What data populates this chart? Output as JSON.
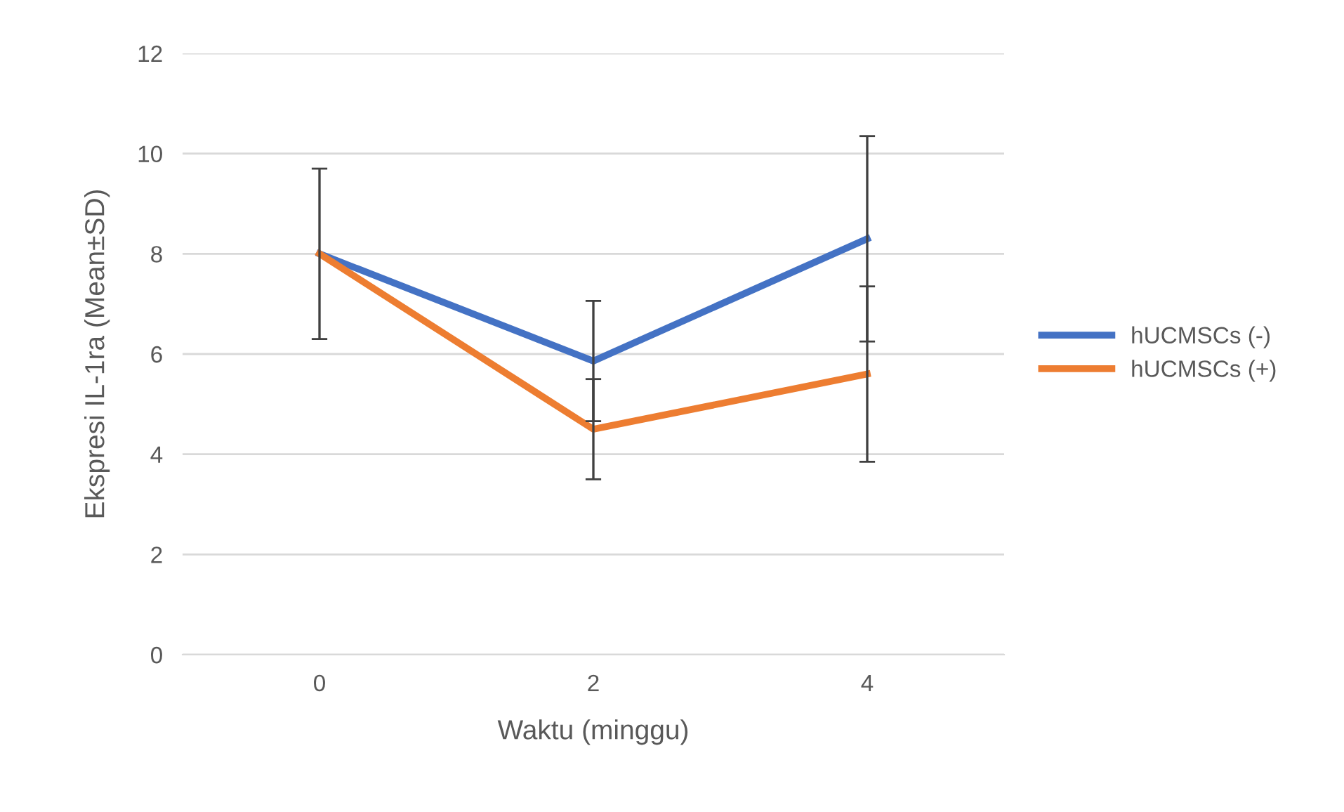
{
  "chart_data": {
    "type": "line",
    "xlabel": "Waktu (minggu)",
    "ylabel": "Ekspresi IL-1ra (Mean±SD)",
    "categories": [
      "0",
      "2",
      "4"
    ],
    "series": [
      {
        "name": "hUCMSCs (-)",
        "color": "#4472c4",
        "values": [
          8.0,
          5.86,
          8.3
        ],
        "errors": [
          1.7,
          1.2,
          2.05
        ]
      },
      {
        "name": "hUCMSCs (+)",
        "color": "#ed7d31",
        "values": [
          8.0,
          4.5,
          5.6
        ],
        "errors": [
          null,
          1.0,
          1.75
        ]
      }
    ],
    "ylim": [
      0,
      12
    ],
    "yticks": [
      0,
      2,
      4,
      6,
      8,
      10,
      12
    ],
    "grid": "y",
    "legend": "right",
    "marker": "none",
    "line_style": "solid"
  }
}
